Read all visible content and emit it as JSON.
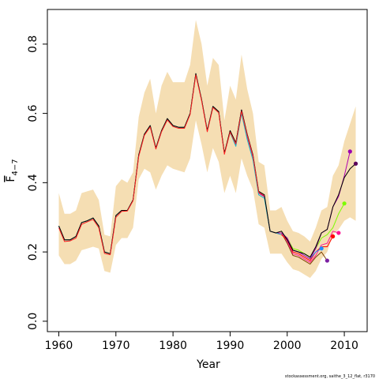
{
  "chart_data": {
    "type": "line",
    "xlabel": "Year",
    "ylabel_main": "F",
    "ylabel_sub": "4−7",
    "xlim": [
      1958,
      2014
    ],
    "ylim": [
      -0.03,
      0.9
    ],
    "xticks": [
      1960,
      1970,
      1980,
      1990,
      2000,
      2010
    ],
    "yticks": [
      0.0,
      0.2,
      0.4,
      0.6,
      0.8
    ],
    "ytick_labels": [
      "0.0",
      "0.2",
      "0.4",
      "0.6",
      "0.8"
    ],
    "band_color": "#f5deb3",
    "band": {
      "x": [
        1960,
        1961,
        1962,
        1963,
        1964,
        1965,
        1966,
        1967,
        1968,
        1969,
        1970,
        1971,
        1972,
        1973,
        1974,
        1975,
        1976,
        1977,
        1978,
        1979,
        1980,
        1981,
        1982,
        1983,
        1984,
        1985,
        1986,
        1987,
        1988,
        1989,
        1990,
        1991,
        1992,
        1993,
        1994,
        1995,
        1996,
        1997,
        1998,
        1999,
        2000,
        2001,
        2002,
        2003,
        2004,
        2005,
        2006,
        2007,
        2008,
        2009,
        2010,
        2011,
        2012
      ],
      "upper": [
        0.37,
        0.31,
        0.31,
        0.32,
        0.37,
        0.375,
        0.38,
        0.35,
        0.25,
        0.245,
        0.39,
        0.41,
        0.4,
        0.43,
        0.59,
        0.66,
        0.7,
        0.6,
        0.68,
        0.72,
        0.69,
        0.69,
        0.69,
        0.74,
        0.87,
        0.8,
        0.68,
        0.76,
        0.74,
        0.58,
        0.68,
        0.64,
        0.77,
        0.67,
        0.6,
        0.46,
        0.45,
        0.32,
        0.32,
        0.33,
        0.29,
        0.26,
        0.255,
        0.245,
        0.23,
        0.27,
        0.32,
        0.33,
        0.42,
        0.45,
        0.52,
        0.57,
        0.62
      ],
      "lower": [
        0.19,
        0.165,
        0.165,
        0.175,
        0.205,
        0.21,
        0.215,
        0.21,
        0.145,
        0.14,
        0.22,
        0.24,
        0.24,
        0.27,
        0.41,
        0.44,
        0.43,
        0.38,
        0.42,
        0.45,
        0.44,
        0.435,
        0.43,
        0.47,
        0.58,
        0.51,
        0.43,
        0.5,
        0.46,
        0.37,
        0.42,
        0.37,
        0.47,
        0.42,
        0.38,
        0.28,
        0.27,
        0.195,
        0.195,
        0.195,
        0.17,
        0.15,
        0.145,
        0.135,
        0.125,
        0.145,
        0.18,
        0.2,
        0.25,
        0.265,
        0.29,
        0.3,
        0.29
      ]
    },
    "series": [
      {
        "color": "#7b3f00",
        "values": [
          [
            1960,
            0.275
          ],
          [
            1961,
            0.235
          ],
          [
            1962,
            0.235
          ],
          [
            1963,
            0.245
          ],
          [
            1964,
            0.285
          ],
          [
            1965,
            0.29
          ],
          [
            1966,
            0.298
          ],
          [
            1967,
            0.275
          ],
          [
            1968,
            0.2
          ],
          [
            1969,
            0.195
          ],
          [
            1970,
            0.305
          ],
          [
            1971,
            0.32
          ],
          [
            1972,
            0.32
          ],
          [
            1973,
            0.35
          ],
          [
            1974,
            0.48
          ],
          [
            1975,
            0.54
          ],
          [
            1976,
            0.565
          ],
          [
            1977,
            0.5
          ],
          [
            1978,
            0.55
          ],
          [
            1979,
            0.585
          ],
          [
            1980,
            0.565
          ],
          [
            1981,
            0.56
          ],
          [
            1982,
            0.56
          ],
          [
            1983,
            0.6
          ],
          [
            1984,
            0.715
          ],
          [
            1985,
            0.64
          ],
          [
            1986,
            0.55
          ],
          [
            1987,
            0.62
          ],
          [
            1988,
            0.605
          ],
          [
            1989,
            0.485
          ],
          [
            1990,
            0.55
          ],
          [
            1991,
            0.515
          ],
          [
            1992,
            0.61
          ],
          [
            1993,
            0.535
          ],
          [
            1994,
            0.475
          ],
          [
            1995,
            0.37
          ],
          [
            1996,
            0.36
          ],
          [
            1997,
            0.26
          ],
          [
            1998,
            0.255
          ],
          [
            1999,
            0.255
          ],
          [
            2000,
            0.225
          ],
          [
            2001,
            0.19
          ],
          [
            2002,
            0.185
          ],
          [
            2003,
            0.175
          ],
          [
            2004,
            0.165
          ],
          [
            2005,
            0.185
          ],
          [
            2006,
            0.2
          ],
          [
            2007,
            0.175
          ]
        ]
      },
      {
        "color": "#ff1493",
        "values": [
          [
            1997,
            0.26
          ],
          [
            1998,
            0.255
          ],
          [
            1999,
            0.255
          ],
          [
            2000,
            0.23
          ],
          [
            2001,
            0.195
          ],
          [
            2002,
            0.19
          ],
          [
            2003,
            0.18
          ],
          [
            2004,
            0.17
          ],
          [
            2005,
            0.19
          ],
          [
            2006,
            0.22
          ],
          [
            2007,
            0.225
          ],
          [
            2008,
            0.26
          ],
          [
            2009,
            0.255
          ]
        ]
      },
      {
        "color": "#ff0000",
        "values": [
          [
            1997,
            0.26
          ],
          [
            1998,
            0.255
          ],
          [
            1999,
            0.25
          ],
          [
            2000,
            0.235
          ],
          [
            2001,
            0.2
          ],
          [
            2002,
            0.195
          ],
          [
            2003,
            0.185
          ],
          [
            2004,
            0.175
          ],
          [
            2005,
            0.2
          ],
          [
            2006,
            0.215
          ],
          [
            2007,
            0.215
          ],
          [
            2008,
            0.245
          ]
        ]
      },
      {
        "color": "#1e90ff",
        "values": [
          [
            1997,
            0.26
          ],
          [
            1998,
            0.255
          ],
          [
            1999,
            0.255
          ],
          [
            2000,
            0.24
          ],
          [
            2001,
            0.205
          ],
          [
            2002,
            0.2
          ],
          [
            2003,
            0.19
          ],
          [
            2004,
            0.18
          ],
          [
            2005,
            0.2
          ],
          [
            2006,
            0.21
          ]
        ]
      },
      {
        "color": "#7cfc00",
        "values": [
          [
            1997,
            0.26
          ],
          [
            1998,
            0.255
          ],
          [
            1999,
            0.255
          ],
          [
            2000,
            0.24
          ],
          [
            2001,
            0.21
          ],
          [
            2002,
            0.205
          ],
          [
            2003,
            0.195
          ],
          [
            2004,
            0.185
          ],
          [
            2005,
            0.21
          ],
          [
            2006,
            0.24
          ],
          [
            2007,
            0.25
          ],
          [
            2008,
            0.27
          ],
          [
            2009,
            0.31
          ],
          [
            2010,
            0.34
          ]
        ]
      },
      {
        "color": "#b000b0",
        "values": [
          [
            1990,
            0.55
          ],
          [
            1991,
            0.51
          ],
          [
            1992,
            0.61
          ],
          [
            1993,
            0.535
          ],
          [
            1994,
            0.475
          ],
          [
            1995,
            0.37
          ],
          [
            1996,
            0.36
          ],
          [
            1997,
            0.26
          ],
          [
            1998,
            0.255
          ],
          [
            1999,
            0.255
          ],
          [
            2000,
            0.24
          ],
          [
            2001,
            0.205
          ],
          [
            2002,
            0.2
          ],
          [
            2003,
            0.19
          ],
          [
            2004,
            0.18
          ],
          [
            2005,
            0.21
          ],
          [
            2006,
            0.255
          ],
          [
            2007,
            0.265
          ],
          [
            2008,
            0.33
          ],
          [
            2009,
            0.36
          ],
          [
            2010,
            0.42
          ],
          [
            2011,
            0.49
          ]
        ]
      },
      {
        "color": "#1ab2c8",
        "values": [
          [
            1960,
            0.275
          ],
          [
            1961,
            0.235
          ],
          [
            1962,
            0.235
          ],
          [
            1963,
            0.245
          ],
          [
            1964,
            0.285
          ],
          [
            1965,
            0.29
          ],
          [
            1966,
            0.298
          ],
          [
            1967,
            0.275
          ],
          [
            1968,
            0.2
          ],
          [
            1969,
            0.195
          ],
          [
            1970,
            0.305
          ],
          [
            1971,
            0.32
          ],
          [
            1972,
            0.32
          ],
          [
            1973,
            0.35
          ],
          [
            1974,
            0.48
          ],
          [
            1975,
            0.54
          ],
          [
            1976,
            0.565
          ],
          [
            1977,
            0.5
          ],
          [
            1978,
            0.55
          ],
          [
            1979,
            0.585
          ],
          [
            1980,
            0.565
          ],
          [
            1981,
            0.56
          ],
          [
            1982,
            0.56
          ],
          [
            1983,
            0.6
          ],
          [
            1984,
            0.715
          ],
          [
            1985,
            0.64
          ],
          [
            1986,
            0.55
          ],
          [
            1987,
            0.62
          ],
          [
            1988,
            0.605
          ],
          [
            1989,
            0.485
          ],
          [
            1990,
            0.545
          ],
          [
            1991,
            0.505
          ],
          [
            1992,
            0.6
          ],
          [
            1993,
            0.525
          ],
          [
            1994,
            0.465
          ],
          [
            1995,
            0.365
          ],
          [
            1996,
            0.355
          ],
          [
            1997,
            0.26
          ],
          [
            1998,
            0.255
          ],
          [
            1999,
            0.25
          ]
        ]
      },
      {
        "color": "#000000",
        "values": [
          [
            1960,
            0.275
          ],
          [
            1961,
            0.235
          ],
          [
            1962,
            0.235
          ],
          [
            1963,
            0.245
          ],
          [
            1964,
            0.285
          ],
          [
            1965,
            0.29
          ],
          [
            1966,
            0.298
          ],
          [
            1967,
            0.275
          ],
          [
            1968,
            0.2
          ],
          [
            1969,
            0.195
          ],
          [
            1970,
            0.305
          ],
          [
            1971,
            0.32
          ],
          [
            1972,
            0.32
          ],
          [
            1973,
            0.35
          ],
          [
            1974,
            0.48
          ],
          [
            1975,
            0.54
          ],
          [
            1976,
            0.565
          ],
          [
            1977,
            0.5
          ],
          [
            1978,
            0.55
          ],
          [
            1979,
            0.585
          ],
          [
            1980,
            0.565
          ],
          [
            1981,
            0.56
          ],
          [
            1982,
            0.56
          ],
          [
            1983,
            0.6
          ],
          [
            1984,
            0.715
          ],
          [
            1985,
            0.64
          ],
          [
            1986,
            0.55
          ],
          [
            1987,
            0.62
          ],
          [
            1988,
            0.605
          ],
          [
            1989,
            0.485
          ],
          [
            1990,
            0.55
          ],
          [
            1991,
            0.515
          ],
          [
            1992,
            0.61
          ],
          [
            1993,
            0.54
          ],
          [
            1994,
            0.48
          ],
          [
            1995,
            0.375
          ],
          [
            1996,
            0.365
          ],
          [
            1997,
            0.26
          ],
          [
            1998,
            0.255
          ],
          [
            1999,
            0.26
          ],
          [
            2000,
            0.235
          ],
          [
            2001,
            0.205
          ],
          [
            2002,
            0.2
          ],
          [
            2003,
            0.195
          ],
          [
            2004,
            0.185
          ],
          [
            2005,
            0.215
          ],
          [
            2006,
            0.255
          ],
          [
            2007,
            0.265
          ],
          [
            2008,
            0.33
          ],
          [
            2009,
            0.365
          ],
          [
            2010,
            0.415
          ],
          [
            2011,
            0.44
          ],
          [
            2012,
            0.455
          ]
        ]
      },
      {
        "color": "#ff2020",
        "values": [
          [
            1960,
            0.27
          ],
          [
            1961,
            0.23
          ],
          [
            1962,
            0.232
          ],
          [
            1963,
            0.24
          ],
          [
            1964,
            0.28
          ],
          [
            1965,
            0.287
          ],
          [
            1966,
            0.294
          ],
          [
            1967,
            0.27
          ],
          [
            1968,
            0.196
          ],
          [
            1969,
            0.192
          ],
          [
            1970,
            0.3
          ],
          [
            1971,
            0.317
          ],
          [
            1972,
            0.318
          ],
          [
            1973,
            0.348
          ],
          [
            1974,
            0.476
          ],
          [
            1975,
            0.537
          ],
          [
            1976,
            0.561
          ],
          [
            1977,
            0.497
          ],
          [
            1978,
            0.547
          ],
          [
            1979,
            0.581
          ],
          [
            1980,
            0.562
          ],
          [
            1981,
            0.557
          ],
          [
            1982,
            0.557
          ],
          [
            1983,
            0.597
          ],
          [
            1984,
            0.711
          ],
          [
            1985,
            0.637
          ],
          [
            1986,
            0.547
          ],
          [
            1987,
            0.617
          ],
          [
            1988,
            0.602
          ],
          [
            1989,
            0.482
          ],
          [
            1990,
            0.546
          ],
          [
            1991,
            0.512
          ],
          [
            1992,
            0.606
          ],
          [
            1993,
            0.537
          ],
          [
            1994,
            0.477
          ],
          [
            1995,
            0.372
          ],
          [
            1996,
            0.362
          ]
        ]
      }
    ],
    "endpoints": [
      {
        "x": 2007,
        "y": 0.175,
        "color": "#7b1fa2"
      },
      {
        "x": 2008,
        "y": 0.245,
        "color": "#ff0000"
      },
      {
        "x": 2009,
        "y": 0.255,
        "color": "#ff1493"
      },
      {
        "x": 2006,
        "y": 0.21,
        "color": "#1e90ff"
      },
      {
        "x": 2010,
        "y": 0.34,
        "color": "#7cfc00"
      },
      {
        "x": 2011,
        "y": 0.49,
        "color": "#9c00b0"
      },
      {
        "x": 2012,
        "y": 0.455,
        "color": "#5b005b"
      }
    ]
  },
  "footer": "stockassessment.org, saithe_3_12_flat, r3170"
}
